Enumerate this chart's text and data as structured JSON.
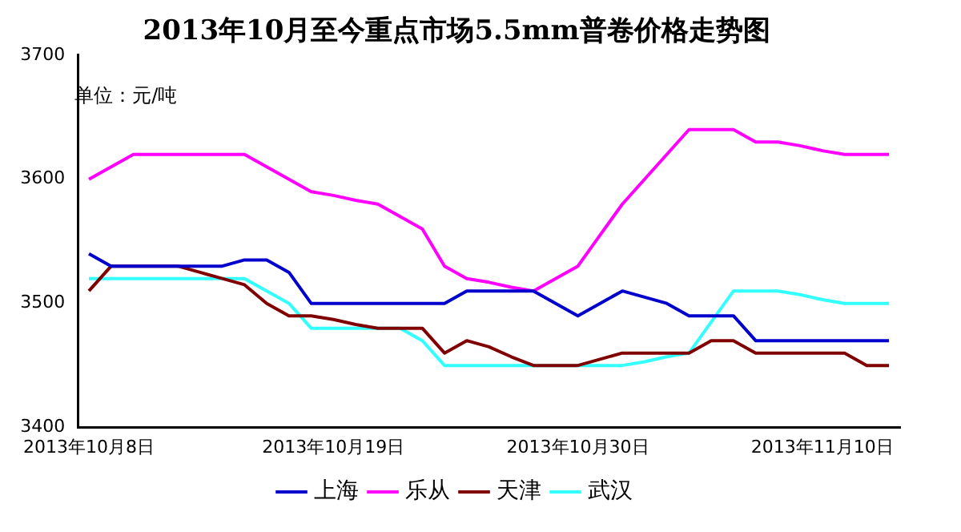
{
  "chart_data": {
    "type": "line",
    "title": "2013年10月至今重点市场5.5mm普卷价格走势图",
    "annotations": [
      "单位：元/吨"
    ],
    "categories": [
      "2013年10月8日",
      null,
      null,
      null,
      null,
      null,
      null,
      null,
      null,
      null,
      null,
      "2013年10月19日",
      null,
      null,
      null,
      null,
      null,
      null,
      null,
      null,
      null,
      null,
      "2013年10月30日",
      null,
      null,
      null,
      null,
      null,
      null,
      null,
      null,
      null,
      null,
      "2013年11月10日",
      null,
      null,
      null
    ],
    "series": [
      {
        "name": "上海",
        "color": "#0000cc",
        "values": [
          3540,
          3530,
          3530,
          3530,
          3530,
          3530,
          3530,
          3535,
          3535,
          3525,
          3500,
          3500,
          3500,
          3500,
          3500,
          3500,
          3500,
          3510,
          3510,
          3510,
          3510,
          3500,
          3490,
          3500,
          3510,
          3505,
          3500,
          3490,
          3490,
          3490,
          3470,
          3470,
          3470,
          3470,
          3470,
          3470,
          3470
        ]
      },
      {
        "name": "乐从",
        "color": "#ff00ff",
        "values": [
          3600,
          3610,
          3620,
          3620,
          3620,
          3620,
          3620,
          3620,
          3610,
          3600,
          3590,
          3587,
          3583,
          3580,
          3570,
          3560,
          3530,
          3520,
          3517,
          3513,
          3510,
          3520,
          3530,
          3555,
          3580,
          3600,
          3620,
          3640,
          3640,
          3640,
          3630,
          3630,
          3627,
          3623,
          3620,
          3620,
          3620
        ]
      },
      {
        "name": "天津",
        "color": "#800000",
        "values": [
          3510,
          3530,
          3530,
          3530,
          3530,
          3525,
          3520,
          3515,
          3500,
          3490,
          3490,
          3487,
          3483,
          3480,
          3480,
          3480,
          3460,
          3470,
          3465,
          3457,
          3450,
          3450,
          3450,
          3455,
          3460,
          3460,
          3460,
          3460,
          3470,
          3470,
          3460,
          3460,
          3460,
          3460,
          3460,
          3450,
          3450
        ]
      },
      {
        "name": "武汉",
        "color": "#33ffff",
        "values": [
          3520,
          3520,
          3520,
          3520,
          3520,
          3520,
          3520,
          3520,
          3510,
          3500,
          3480,
          3480,
          3480,
          3480,
          3480,
          3470,
          3450,
          3450,
          3450,
          3450,
          3450,
          3450,
          3450,
          3450,
          3450,
          3453,
          3457,
          3460,
          3485,
          3510,
          3510,
          3510,
          3507,
          3503,
          3500,
          3500,
          3500
        ]
      }
    ],
    "ylim": [
      3400,
      3700
    ],
    "yticks": [
      3400,
      3500,
      3600,
      3700
    ],
    "grid": false,
    "legend": "bottom",
    "marker": "none",
    "line_style": "solid"
  }
}
